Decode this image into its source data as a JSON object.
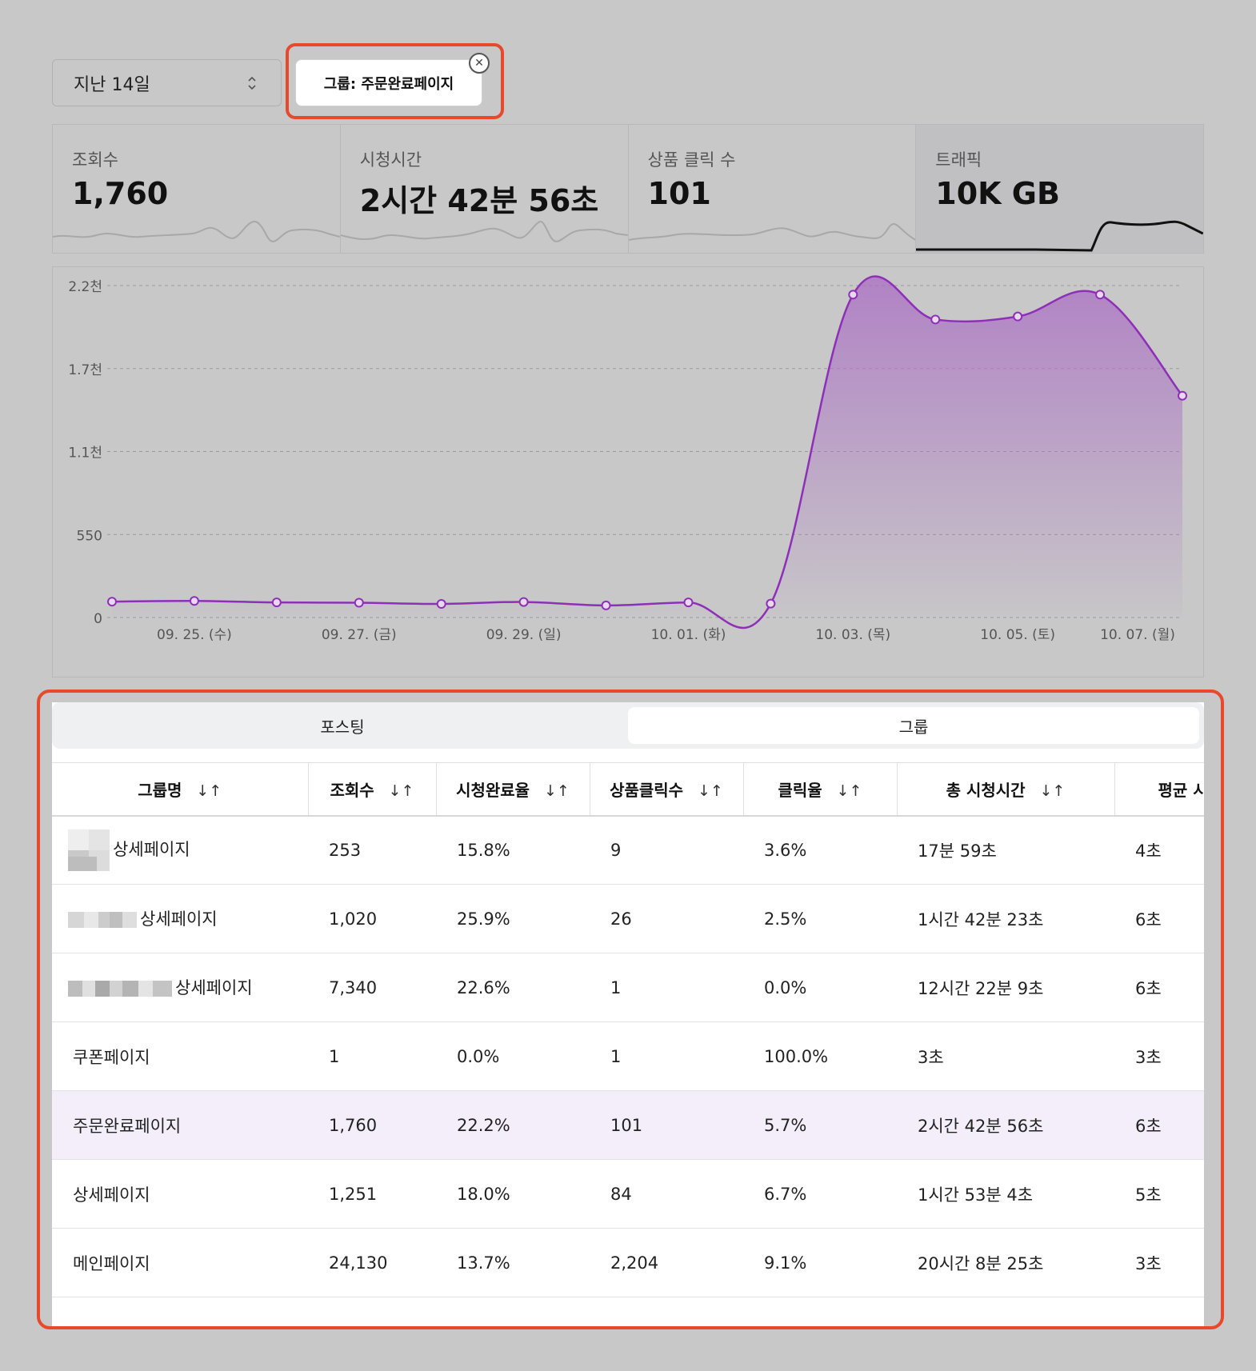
{
  "filters": {
    "period_label": "지난 14일",
    "group_chip_label": "그룹: 주문완료페이지"
  },
  "kpis": [
    {
      "label": "조회수",
      "value": "1,760"
    },
    {
      "label": "시청시간",
      "value": "2시간 42분 56초"
    },
    {
      "label": "상품 클릭 수",
      "value": "101"
    },
    {
      "label": "트래픽",
      "value": "10K GB"
    }
  ],
  "chart_data": {
    "type": "area",
    "title": "",
    "xlabel": "",
    "ylabel": "",
    "ylim": [
      0,
      2200
    ],
    "y_ticks": [
      "0",
      "550",
      "1.1천",
      "1.7천",
      "2.2천"
    ],
    "x_tick_labels": [
      "09. 25. (수)",
      "09. 27. (금)",
      "09. 29. (일)",
      "10. 01. (화)",
      "10. 03. (목)",
      "10. 05. (토)",
      "10. 07. (월)"
    ],
    "x": [
      "09. 24.",
      "09. 25.",
      "09. 26.",
      "09. 27.",
      "09. 28.",
      "09. 29.",
      "09. 30.",
      "10. 01.",
      "10. 02.",
      "10. 03.",
      "10. 04.",
      "10. 05.",
      "10. 06.",
      "10. 07."
    ],
    "values": [
      105,
      110,
      100,
      98,
      90,
      103,
      80,
      100,
      92,
      2140,
      1975,
      1995,
      2140,
      1470
    ],
    "grid": true,
    "color": "#8e2fb8"
  },
  "table": {
    "tabs": [
      "포스팅",
      "그룹"
    ],
    "active_tab": 1,
    "columns": [
      "그룹명",
      "조회수",
      "시청완료율",
      "상품클릭수",
      "클릭율",
      "총 시청시간",
      "평균 시"
    ],
    "sort_icon": "↓↑",
    "rows": [
      {
        "name": "상세페이지",
        "views": "253",
        "completion": "15.8%",
        "clicks": "9",
        "ctr": "3.6%",
        "total_time": "17분 59초",
        "avg_time": "4초",
        "blur": "a"
      },
      {
        "name": "상세페이지",
        "views": "1,020",
        "completion": "25.9%",
        "clicks": "26",
        "ctr": "2.5%",
        "total_time": "1시간 42분 23초",
        "avg_time": "6초",
        "blur": "b"
      },
      {
        "name": "상세페이지",
        "views": "7,340",
        "completion": "22.6%",
        "clicks": "1",
        "ctr": "0.0%",
        "total_time": "12시간 22분 9초",
        "avg_time": "6초",
        "blur": "c"
      },
      {
        "name": "쿠폰페이지",
        "views": "1",
        "completion": "0.0%",
        "clicks": "1",
        "ctr": "100.0%",
        "total_time": "3초",
        "avg_time": "3초"
      },
      {
        "name": "주문완료페이지",
        "views": "1,760",
        "completion": "22.2%",
        "clicks": "101",
        "ctr": "5.7%",
        "total_time": "2시간 42분 56초",
        "avg_time": "6초",
        "highlight": true
      },
      {
        "name": "상세페이지",
        "views": "1,251",
        "completion": "18.0%",
        "clicks": "84",
        "ctr": "6.7%",
        "total_time": "1시간 53분 4초",
        "avg_time": "5초"
      },
      {
        "name": "메인페이지",
        "views": "24,130",
        "completion": "13.7%",
        "clicks": "2,204",
        "ctr": "9.1%",
        "total_time": "20시간 8분 25초",
        "avg_time": "3초"
      }
    ]
  }
}
